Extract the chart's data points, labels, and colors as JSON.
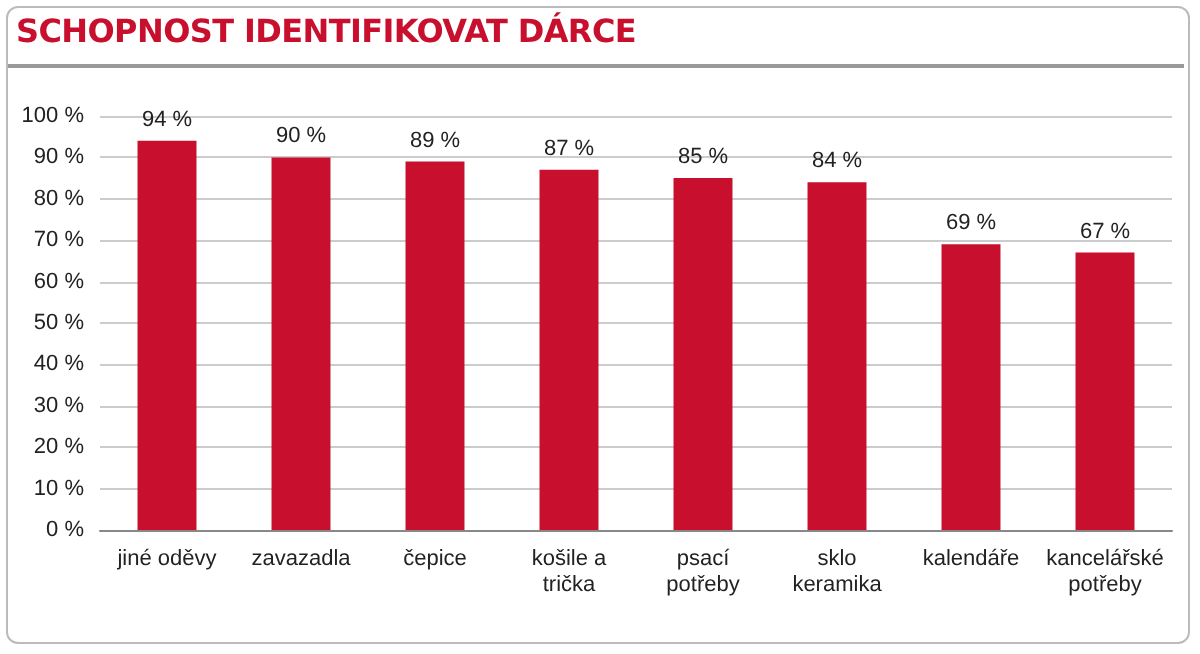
{
  "chart_data": {
    "type": "bar",
    "title": "SCHOPNOST IDENTIFIKOVAT DÁRCE",
    "categories": [
      "jiné oděvy",
      "zavazadla",
      "čepice",
      "košile a\ntrička",
      "psací\npotřeby",
      "sklo\nkeramika",
      "kalendáře",
      "kancelářské\npotřeby"
    ],
    "values": [
      94,
      90,
      89,
      87,
      85,
      84,
      69,
      67
    ],
    "value_labels": [
      "94 %",
      "90 %",
      "89 %",
      "87 %",
      "85 %",
      "84 %",
      "69 %",
      "67 %"
    ],
    "color": "#c8102e",
    "ylim": [
      0,
      100
    ],
    "yticks": [
      {
        "value": 0,
        "label": "0 %"
      },
      {
        "value": 10,
        "label": "10 %"
      },
      {
        "value": 20,
        "label": "20 %"
      },
      {
        "value": 30,
        "label": "30 %"
      },
      {
        "value": 40,
        "label": "40 %"
      },
      {
        "value": 50,
        "label": "50 %"
      },
      {
        "value": 60,
        "label": "60 %"
      },
      {
        "value": 70,
        "label": "70 %"
      },
      {
        "value": 80,
        "label": "80 %"
      },
      {
        "value": 90,
        "label": "90 %"
      },
      {
        "value": 100,
        "label": "100 %"
      }
    ],
    "grid": true
  }
}
